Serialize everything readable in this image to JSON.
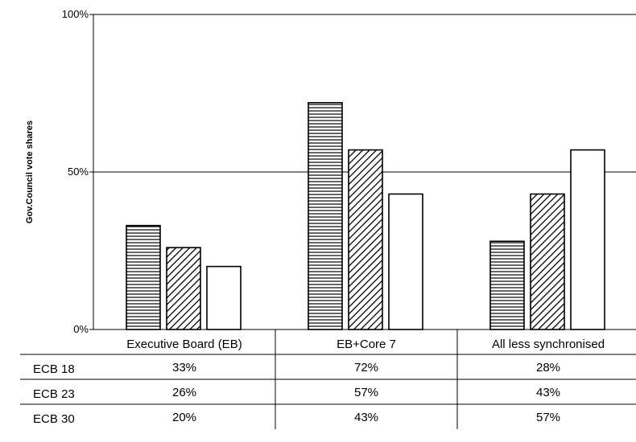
{
  "chart_data": {
    "type": "bar",
    "ylabel": "Gov.Council vote shares",
    "ylim": [
      0,
      100
    ],
    "y_ticks": [
      {
        "value": 0,
        "label": "0%"
      },
      {
        "value": 50,
        "label": "50%"
      },
      {
        "value": 100,
        "label": "100%"
      }
    ],
    "grid": "horizontal at 50%",
    "categories": [
      "Executive Board (EB)",
      "EB+Core 7",
      "All less synchronised"
    ],
    "series": [
      {
        "name": "ECB 18",
        "pattern": "horizontal-lines",
        "values": [
          33,
          72,
          28
        ],
        "labels": [
          "33%",
          "72%",
          "28%"
        ]
      },
      {
        "name": "ECB 23",
        "pattern": "diagonal-hatch",
        "values": [
          26,
          57,
          43
        ],
        "labels": [
          "26%",
          "57%",
          "43%"
        ]
      },
      {
        "name": "ECB 30",
        "pattern": "solid-white",
        "values": [
          20,
          43,
          57
        ],
        "labels": [
          "20%",
          "43%",
          "57%"
        ]
      }
    ],
    "data_table": true
  },
  "colors": {
    "line": "#000000",
    "grid": "#000000",
    "background": "#ffffff"
  }
}
